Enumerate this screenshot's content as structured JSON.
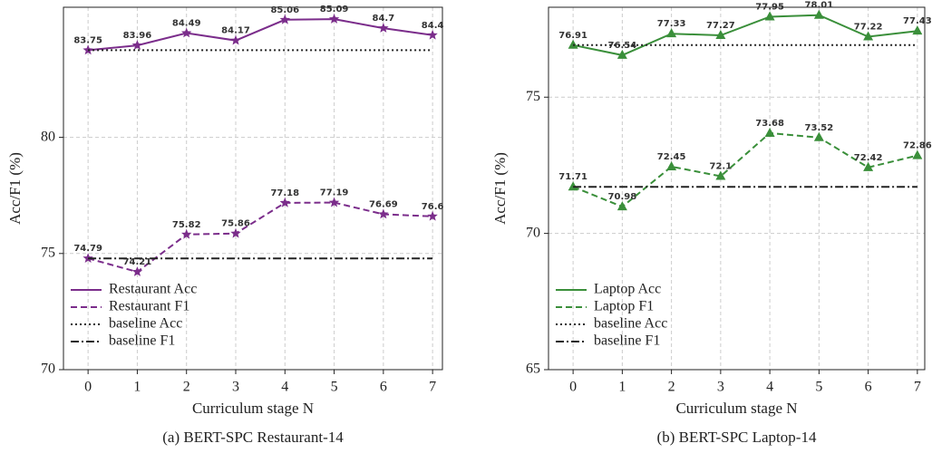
{
  "chart_data": [
    {
      "type": "line",
      "title": "(a) BERT-SPC Restaurant-14",
      "xlabel": "Curriculum stage N",
      "ylabel": "Acc/F1 (%)",
      "x": [
        0,
        1,
        2,
        3,
        4,
        5,
        6,
        7
      ],
      "xlim": [
        -0.5,
        7.2
      ],
      "xticks": [
        0,
        1,
        2,
        3,
        4,
        5,
        6,
        7
      ],
      "ylim": [
        70,
        85.6
      ],
      "yticks": [
        70,
        75,
        80
      ],
      "grid": true,
      "legend": "lower left",
      "series": [
        {
          "name": "Restaurant Acc",
          "color": "#7b2d8b",
          "style": "solid",
          "marker": "star",
          "data_labels": true,
          "values": [
            83.75,
            83.96,
            84.49,
            84.17,
            85.06,
            85.09,
            84.7,
            84.4
          ]
        },
        {
          "name": "Restaurant F1",
          "color": "#7b2d8b",
          "style": "dashed",
          "marker": "star",
          "data_labels": true,
          "values": [
            74.79,
            74.21,
            75.82,
            75.86,
            77.18,
            77.19,
            76.69,
            76.6
          ]
        },
        {
          "name": "baseline Acc",
          "color": "#222222",
          "style": "dotted",
          "values": [
            83.75,
            83.75,
            83.75,
            83.75,
            83.75,
            83.75,
            83.75,
            83.75
          ]
        },
        {
          "name": "baseline F1",
          "color": "#222222",
          "style": "dashdot",
          "values": [
            74.79,
            74.79,
            74.79,
            74.79,
            74.79,
            74.79,
            74.79,
            74.79
          ]
        }
      ]
    },
    {
      "type": "line",
      "title": "(b) BERT-SPC Laptop-14",
      "xlabel": "Curriculum stage N",
      "ylabel": "Acc/F1 (%)",
      "x": [
        0,
        1,
        2,
        3,
        4,
        5,
        6,
        7
      ],
      "xlim": [
        -0.5,
        7.15
      ],
      "xticks": [
        0,
        1,
        2,
        3,
        4,
        5,
        6,
        7
      ],
      "ylim": [
        65,
        78.3
      ],
      "yticks": [
        65,
        70,
        75
      ],
      "grid": true,
      "legend": "lower left",
      "series": [
        {
          "name": "Laptop Acc",
          "color": "#3a8f3a",
          "style": "solid",
          "marker": "triangle",
          "data_labels": true,
          "values": [
            76.91,
            76.54,
            77.33,
            77.27,
            77.95,
            78.01,
            77.22,
            77.43
          ]
        },
        {
          "name": "Laptop F1",
          "color": "#3a8f3a",
          "style": "dashed",
          "marker": "triangle",
          "data_labels": true,
          "values": [
            71.71,
            70.98,
            72.45,
            72.1,
            73.68,
            73.52,
            72.42,
            72.86
          ]
        },
        {
          "name": "baseline Acc",
          "color": "#222222",
          "style": "dotted",
          "values": [
            76.91,
            76.91,
            76.91,
            76.91,
            76.91,
            76.91,
            76.91,
            76.91
          ]
        },
        {
          "name": "baseline F1",
          "color": "#222222",
          "style": "dashdot",
          "values": [
            71.71,
            71.71,
            71.71,
            71.71,
            71.71,
            71.71,
            71.71,
            71.71
          ]
        }
      ]
    }
  ]
}
